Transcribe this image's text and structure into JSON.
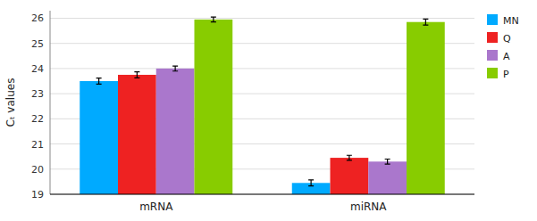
{
  "chart_data": {
    "type": "bar",
    "categories": [
      "mRNA",
      "miRNA"
    ],
    "series": [
      {
        "name": "MN",
        "color": "#00AAFF",
        "values": [
          23.5,
          19.45
        ],
        "errors": [
          0.12,
          0.12
        ]
      },
      {
        "name": "Q",
        "color": "#EE2222",
        "values": [
          23.75,
          20.45
        ],
        "errors": [
          0.12,
          0.1
        ]
      },
      {
        "name": "A",
        "color": "#AA77CC",
        "values": [
          24.0,
          20.3
        ],
        "errors": [
          0.1,
          0.1
        ]
      },
      {
        "name": "P",
        "color": "#88CC00",
        "values": [
          25.95,
          25.85
        ],
        "errors": [
          0.1,
          0.12
        ]
      }
    ],
    "ylabel": "Cₜ values",
    "ylim": [
      19,
      26.3
    ],
    "yticks": [
      19,
      20,
      21,
      22,
      23,
      24,
      25,
      26
    ],
    "grid": true,
    "legend": "right"
  }
}
